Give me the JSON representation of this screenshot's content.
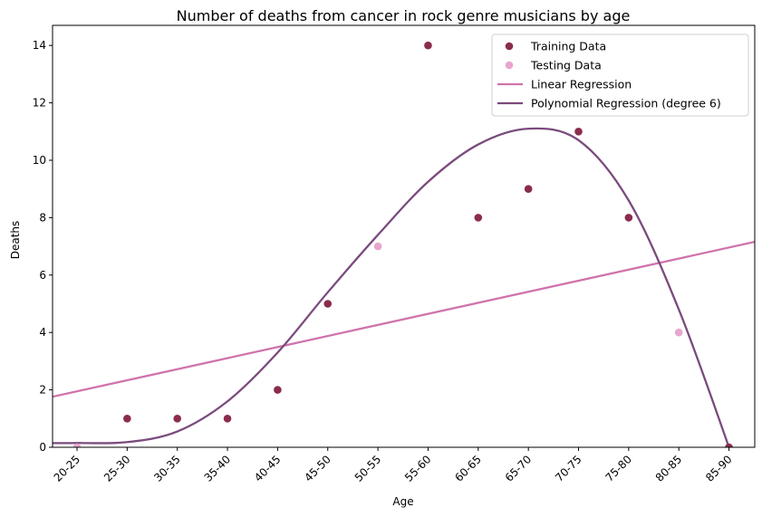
{
  "chart_data": {
    "type": "scatter",
    "title": "Number of deaths from cancer in rock genre musicians by age",
    "xlabel": "Age",
    "ylabel": "Deaths",
    "categories": [
      "20-25",
      "25-30",
      "30-35",
      "35-40",
      "40-45",
      "45-50",
      "50-55",
      "55-60",
      "60-65",
      "65-70",
      "70-75",
      "75-80",
      "80-85",
      "85-90"
    ],
    "yticks": [
      0,
      2,
      4,
      6,
      8,
      10,
      12,
      14
    ],
    "ylim": [
      0,
      14.7
    ],
    "grid": false,
    "legend_position": "top-right",
    "series": [
      {
        "name": "Training Data",
        "kind": "points",
        "color": "#8b2c4e",
        "points": [
          {
            "x": "25-30",
            "y": 1
          },
          {
            "x": "30-35",
            "y": 1
          },
          {
            "x": "35-40",
            "y": 1
          },
          {
            "x": "40-45",
            "y": 2
          },
          {
            "x": "45-50",
            "y": 5
          },
          {
            "x": "55-60",
            "y": 14
          },
          {
            "x": "60-65",
            "y": 8
          },
          {
            "x": "65-70",
            "y": 9
          },
          {
            "x": "70-75",
            "y": 11
          },
          {
            "x": "75-80",
            "y": 8
          },
          {
            "x": "85-90",
            "y": 0
          }
        ]
      },
      {
        "name": "Testing Data",
        "kind": "points",
        "color": "#e8a6cf",
        "points": [
          {
            "x": "20-25",
            "y": 0
          },
          {
            "x": "50-55",
            "y": 7
          },
          {
            "x": "80-85",
            "y": 4
          }
        ]
      },
      {
        "name": "Linear Regression",
        "kind": "line",
        "color": "#cf73ac",
        "values": [
          1.95,
          2.34,
          2.72,
          3.11,
          3.49,
          3.88,
          4.26,
          4.65,
          5.03,
          5.42,
          5.8,
          6.19,
          6.57,
          6.96
        ]
      },
      {
        "name": "Polynomial Regression (degree 6)",
        "kind": "line",
        "color": "#7a4b7d",
        "values": [
          0.15,
          0.18,
          0.55,
          1.6,
          3.3,
          5.4,
          7.4,
          9.25,
          10.55,
          11.1,
          10.7,
          8.6,
          4.8,
          0
        ]
      }
    ]
  }
}
